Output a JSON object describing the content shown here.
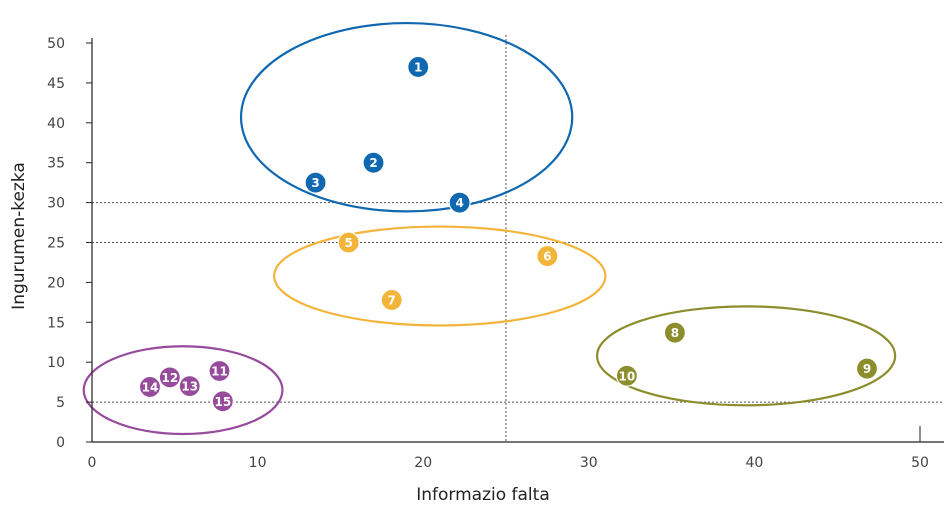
{
  "chart_data": {
    "type": "scatter",
    "title": "",
    "xlabel": "Informazio falta",
    "ylabel": "Ingurumen-kezka",
    "xlim": [
      0,
      50
    ],
    "ylim": [
      0,
      50
    ],
    "x_ticks": [
      0,
      10,
      20,
      30,
      40,
      50
    ],
    "y_ticks": [
      0,
      5,
      10,
      15,
      20,
      25,
      30,
      35,
      40,
      45,
      50
    ],
    "reference_lines": {
      "vertical": [
        25
      ],
      "horizontal": [
        5,
        25,
        30
      ]
    },
    "colors": {
      "blue": "#1068b0",
      "orange": "#f3b43a",
      "olive": "#8c8d2c",
      "purple": "#974b9c"
    },
    "points": [
      {
        "label": "1",
        "x": 19.7,
        "y": 47.0,
        "color": "blue"
      },
      {
        "label": "2",
        "x": 17.0,
        "y": 35.0,
        "color": "blue"
      },
      {
        "label": "3",
        "x": 13.5,
        "y": 32.5,
        "color": "blue"
      },
      {
        "label": "4",
        "x": 22.2,
        "y": 30.0,
        "color": "blue"
      },
      {
        "label": "5",
        "x": 15.5,
        "y": 25.0,
        "color": "orange"
      },
      {
        "label": "6",
        "x": 27.5,
        "y": 23.3,
        "color": "orange"
      },
      {
        "label": "7",
        "x": 18.1,
        "y": 17.8,
        "color": "orange"
      },
      {
        "label": "8",
        "x": 35.2,
        "y": 13.7,
        "color": "olive"
      },
      {
        "label": "9",
        "x": 46.8,
        "y": 9.2,
        "color": "olive"
      },
      {
        "label": "10",
        "x": 32.3,
        "y": 8.3,
        "color": "olive"
      },
      {
        "label": "11",
        "x": 7.7,
        "y": 8.9,
        "color": "purple"
      },
      {
        "label": "12",
        "x": 4.7,
        "y": 8.1,
        "color": "purple"
      },
      {
        "label": "13",
        "x": 5.9,
        "y": 7.0,
        "color": "purple"
      },
      {
        "label": "14",
        "x": 3.5,
        "y": 6.9,
        "color": "purple"
      },
      {
        "label": "15",
        "x": 7.9,
        "y": 5.1,
        "color": "purple"
      }
    ],
    "clusters": [
      {
        "color": "blue",
        "cx": 19.0,
        "cy": 40.7,
        "rx": 10.0,
        "ry": 11.8
      },
      {
        "color": "orange",
        "cx": 21.0,
        "cy": 20.8,
        "rx": 10.0,
        "ry": 6.2
      },
      {
        "color": "olive",
        "cx": 39.5,
        "cy": 10.8,
        "rx": 9.0,
        "ry": 6.2
      },
      {
        "color": "purple",
        "cx": 5.5,
        "cy": 6.5,
        "rx": 6.0,
        "ry": 5.5
      }
    ]
  }
}
